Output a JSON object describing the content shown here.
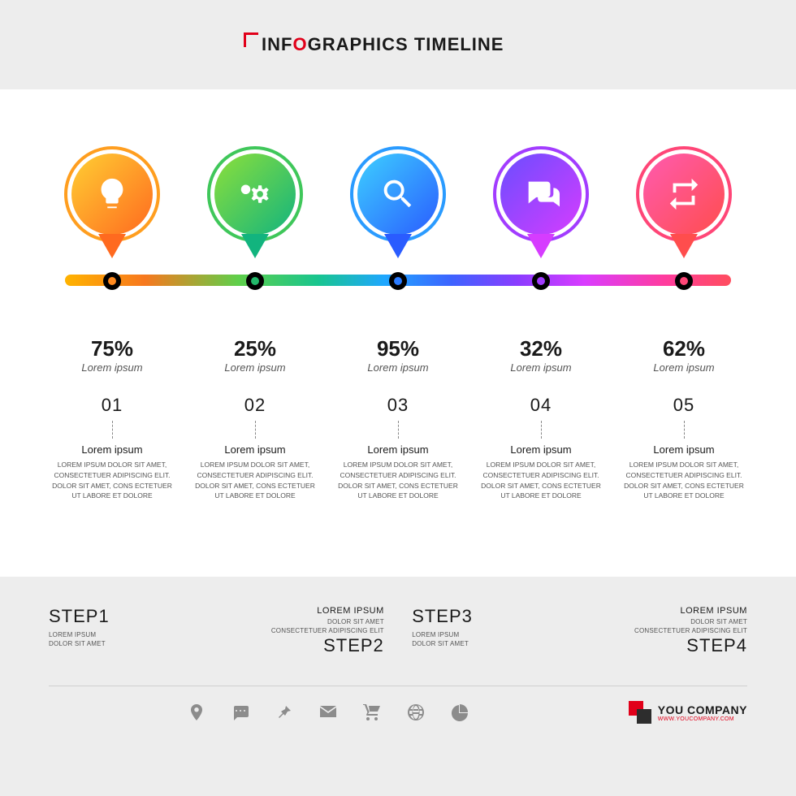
{
  "header": {
    "prefix": "INF",
    "accent": "O",
    "suffix": "GRAPHICS TIMELINE"
  },
  "timeline": {
    "bar_gradient": [
      "#ffb300",
      "#f7781e",
      "#5fcf4a",
      "#18c58f",
      "#1fa7ff",
      "#3d63ff",
      "#8b3cff",
      "#d93cff",
      "#ff3c9e",
      "#ff4d5e"
    ],
    "nodes": [
      {
        "icon": "bulb",
        "ring": "#ff9e1f",
        "grad_from": "#ffcf33",
        "grad_to": "#ff6a1f",
        "dot": "#ff8a1f",
        "percent": "75%",
        "sub": "Lorem ipsum",
        "num": "01",
        "title": "Lorem ipsum",
        "body": "LOREM IPSUM DOLOR SIT AMET, CONSECTETUER ADIPISCING ELIT. DOLOR SIT AMET, CONS ECTETUER UT LABORE ET DOLORE"
      },
      {
        "icon": "gears",
        "ring": "#3fc75a",
        "grad_from": "#8de03a",
        "grad_to": "#12b47e",
        "dot": "#22b86a",
        "percent": "25%",
        "sub": "Lorem ipsum",
        "num": "02",
        "title": "Lorem ipsum",
        "body": "LOREM IPSUM DOLOR SIT AMET, CONSECTETUER ADIPISCING ELIT. DOLOR SIT AMET, CONS ECTETUER UT LABORE ET DOLORE"
      },
      {
        "icon": "search",
        "ring": "#2a9bff",
        "grad_from": "#3dd0ff",
        "grad_to": "#2a5cff",
        "dot": "#2a7bff",
        "percent": "95%",
        "sub": "Lorem ipsum",
        "num": "03",
        "title": "Lorem ipsum",
        "body": "LOREM IPSUM DOLOR SIT AMET, CONSECTETUER ADIPISCING ELIT. DOLOR SIT AMET, CONS ECTETUER UT LABORE ET DOLORE"
      },
      {
        "icon": "chat",
        "ring": "#a23cff",
        "grad_from": "#6a4dff",
        "grad_to": "#d63cff",
        "dot": "#a23cff",
        "percent": "32%",
        "sub": "Lorem ipsum",
        "num": "04",
        "title": "Lorem ipsum",
        "body": "LOREM IPSUM DOLOR SIT AMET, CONSECTETUER ADIPISCING ELIT. DOLOR SIT AMET, CONS ECTETUER UT LABORE ET DOLORE"
      },
      {
        "icon": "repeat",
        "ring": "#ff4677",
        "grad_from": "#ff5bb0",
        "grad_to": "#ff4d4d",
        "dot": "#ff4677",
        "percent": "62%",
        "sub": "Lorem ipsum",
        "num": "05",
        "title": "Lorem ipsum",
        "body": "LOREM IPSUM DOLOR SIT AMET, CONSECTETUER ADIPISCING ELIT. DOLOR SIT AMET, CONS ECTETUER UT LABORE ET DOLORE"
      }
    ]
  },
  "steps": [
    {
      "sub": "",
      "name": "STEP1",
      "line1": "LOREM IPSUM",
      "line2": "DOLOR SIT AMET",
      "align": "left"
    },
    {
      "sub": "LOREM IPSUM",
      "name": "STEP2",
      "line1": "DOLOR SIT AMET",
      "line2": "CONSECTETUER ADIPISCING ELIT",
      "align": "right"
    },
    {
      "sub": "",
      "name": "STEP3",
      "line1": "LOREM IPSUM",
      "line2": "DOLOR SIT AMET",
      "align": "left"
    },
    {
      "sub": "LOREM IPSUM",
      "name": "STEP4",
      "line1": "DOLOR SIT AMET",
      "line2": "CONSECTETUER ADIPISCING ELIT",
      "align": "right"
    }
  ],
  "footer_icons": [
    "pin",
    "msg",
    "pushpin",
    "mail",
    "cart",
    "globe",
    "pie"
  ],
  "brand": {
    "name": "YOU",
    "sub": "COMPANY",
    "url": "WWW.YOUCOMPANY.COM"
  }
}
